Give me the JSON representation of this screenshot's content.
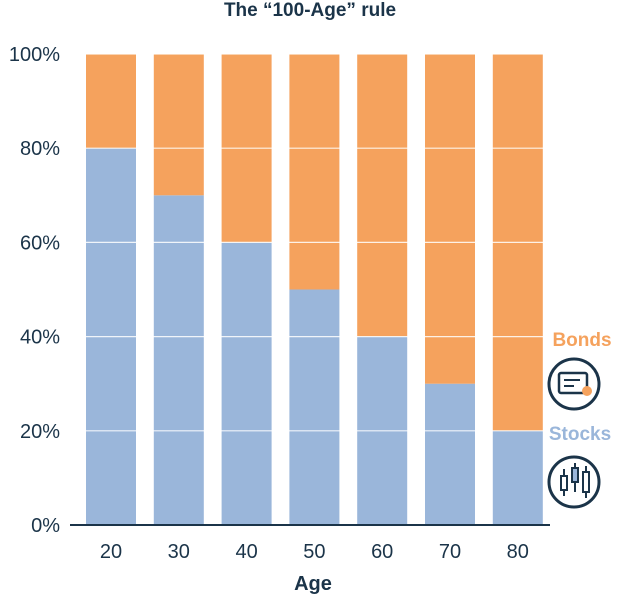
{
  "colors": {
    "stocks": "#9ab6da",
    "bonds": "#f5a25d",
    "text": "#1b3449",
    "grid": "#ffffff"
  },
  "icons": {
    "bonds": "bond-certificate-icon",
    "stocks": "candlestick-chart-icon"
  },
  "chart_data": {
    "type": "bar",
    "stacked": true,
    "title": "The “100-Age” rule",
    "xlabel": "Age",
    "ylabel": "",
    "categories": [
      "20",
      "30",
      "40",
      "50",
      "60",
      "70",
      "80"
    ],
    "series": [
      {
        "name": "Stocks",
        "values": [
          80,
          70,
          60,
          50,
          40,
          30,
          20
        ]
      },
      {
        "name": "Bonds",
        "values": [
          20,
          30,
          40,
          50,
          60,
          70,
          80
        ]
      }
    ],
    "ylim": [
      0,
      100
    ],
    "yticks": [
      0,
      20,
      40,
      60,
      80,
      100
    ],
    "ytick_labels": [
      "0%",
      "20%",
      "40%",
      "60%",
      "80%",
      "100%"
    ],
    "grid": true,
    "legend_position": "right"
  }
}
